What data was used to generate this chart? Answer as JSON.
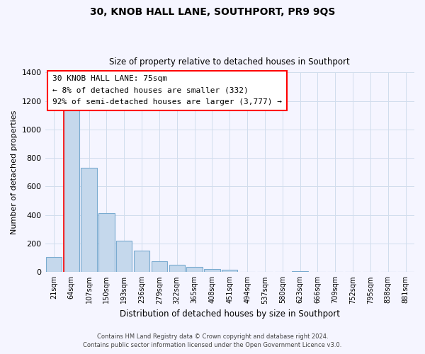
{
  "title": "30, KNOB HALL LANE, SOUTHPORT, PR9 9QS",
  "subtitle": "Size of property relative to detached houses in Southport",
  "xlabel": "Distribution of detached houses by size in Southport",
  "ylabel": "Number of detached properties",
  "bar_labels": [
    "21sqm",
    "64sqm",
    "107sqm",
    "150sqm",
    "193sqm",
    "236sqm",
    "279sqm",
    "322sqm",
    "365sqm",
    "408sqm",
    "451sqm",
    "494sqm",
    "537sqm",
    "580sqm",
    "623sqm",
    "666sqm",
    "709sqm",
    "752sqm",
    "795sqm",
    "838sqm",
    "881sqm"
  ],
  "bar_values": [
    105,
    1165,
    730,
    415,
    220,
    148,
    75,
    50,
    35,
    20,
    15,
    0,
    0,
    0,
    5,
    0,
    0,
    0,
    0,
    0,
    0
  ],
  "bar_color": "#c5d8ec",
  "bar_edge_color": "#7aabd0",
  "annotation_line1": "30 KNOB HALL LANE: 75sqm",
  "annotation_line2": "← 8% of detached houses are smaller (332)",
  "annotation_line3": "92% of semi-detached houses are larger (3,777) →",
  "vertical_line_x": 1,
  "ylim": [
    0,
    1400
  ],
  "yticks": [
    0,
    200,
    400,
    600,
    800,
    1000,
    1200,
    1400
  ],
  "background_color": "#f5f5ff",
  "grid_color": "#d0dded",
  "footnote1": "Contains HM Land Registry data © Crown copyright and database right 2024.",
  "footnote2": "Contains public sector information licensed under the Open Government Licence v3.0."
}
